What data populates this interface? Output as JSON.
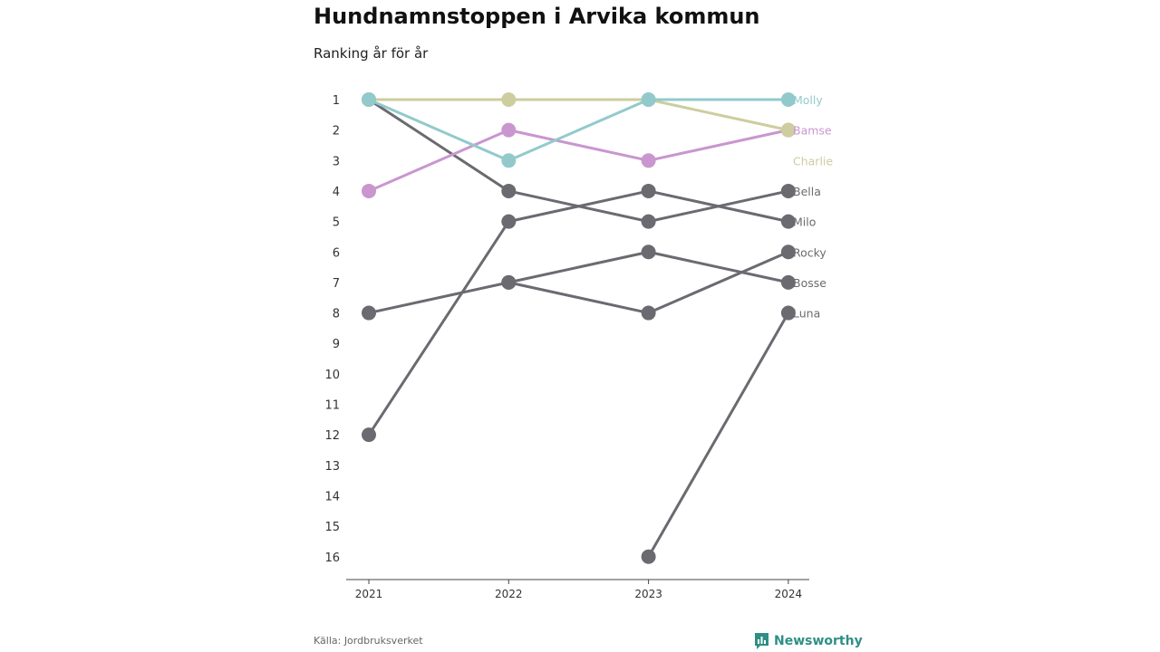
{
  "header": {
    "title": "Hundnamnstoppen i Arvika kommun",
    "subtitle": "Ranking år för år"
  },
  "footer": {
    "source": "Källa: Jordbruksverket",
    "brand": "Newsworthy",
    "brand_color": "#2f8f86"
  },
  "chart_data": {
    "type": "line",
    "title": "Hundnamnstoppen i Arvika kommun",
    "subtitle": "Ranking år för år",
    "x": [
      "2021",
      "2022",
      "2023",
      "2024"
    ],
    "y_ticks": [
      1,
      2,
      3,
      4,
      5,
      6,
      7,
      8,
      9,
      10,
      11,
      12,
      13,
      14,
      15,
      16
    ],
    "ylim": [
      1,
      16
    ],
    "y_inverted": true,
    "grid": false,
    "legend": "end-labels",
    "series": [
      {
        "name": "Bella",
        "values": [
          1,
          4,
          5,
          4
        ],
        "color": "#6b6a70"
      },
      {
        "name": "Milo",
        "values": [
          12,
          5,
          4,
          5
        ],
        "color": "#6b6a70"
      },
      {
        "name": "Rocky",
        "values": [
          null,
          7,
          8,
          6
        ],
        "color": "#6b6a70"
      },
      {
        "name": "Bosse",
        "values": [
          8,
          7,
          6,
          7
        ],
        "color": "#6b6a70"
      },
      {
        "name": "Luna",
        "values": [
          null,
          null,
          16,
          8
        ],
        "color": "#6b6a70"
      },
      {
        "name": "Bamse",
        "values": [
          4,
          2,
          3,
          2
        ],
        "color": "#c996cf"
      },
      {
        "name": "Charlie",
        "values": [
          1,
          1,
          1,
          2
        ],
        "color": "#cdcd9f"
      },
      {
        "name": "Molly",
        "values": [
          1,
          3,
          1,
          1
        ],
        "color": "#92cacc"
      }
    ],
    "end_labels": [
      {
        "text": "Molly",
        "rank": 1,
        "color": "#92cacc"
      },
      {
        "text": "Bamse",
        "rank": 2,
        "color": "#c996cf"
      },
      {
        "text": "Charlie",
        "rank": 3,
        "color": "#cdcd9f"
      },
      {
        "text": "Bella",
        "rank": 4,
        "color": "#6b6a70"
      },
      {
        "text": "Milo",
        "rank": 5,
        "color": "#6b6a70"
      },
      {
        "text": "Rocky",
        "rank": 6,
        "color": "#6b6a70"
      },
      {
        "text": "Bosse",
        "rank": 7,
        "color": "#6b6a70"
      },
      {
        "text": "Luna",
        "rank": 8,
        "color": "#6b6a70"
      }
    ]
  }
}
